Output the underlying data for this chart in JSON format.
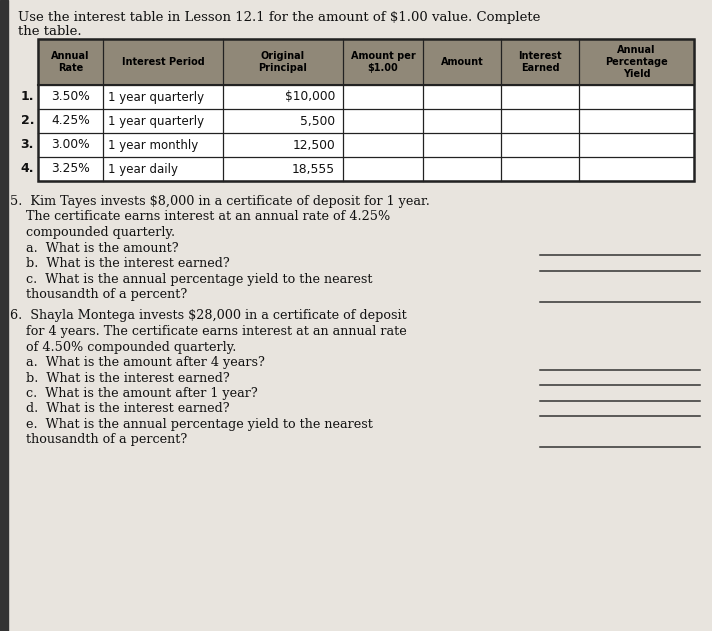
{
  "title_line1": "Use the interest table in Lesson 12.1 for the amount of $1.00 value. Complete",
  "title_line2": "the table.",
  "header_texts": [
    "Annual\nRate",
    "Interest Period",
    "Original\nPrincipal",
    "Amount per\n$1.00",
    "Amount",
    "Interest\nEarned",
    "Annual\nPercentage\nYield"
  ],
  "row_labels": [
    "1.",
    "2.",
    "3.",
    "4."
  ],
  "row_annual_rate": [
    "3.50%",
    "4.25%",
    "3.00%",
    "3.25%"
  ],
  "row_interest_period": [
    "1 year quarterly",
    "1 year quarterly",
    "1 year monthly",
    "1 year daily"
  ],
  "row_principal": [
    "$10,000",
    "5,500",
    "12,500",
    "18,555"
  ],
  "q5_lines": [
    "5.  Kim Tayes invests $8,000 in a certificate of deposit for 1 year.",
    "    The certificate earns interest at an annual rate of 4.25%",
    "    compounded quarterly.",
    "    a.  What is the amount?",
    "    b.  What is the interest earned?",
    "    c.  What is the annual percentage yield to the nearest",
    "         thousandth of a percent?"
  ],
  "q5_answer_lines": [
    3,
    4,
    6
  ],
  "q6_lines": [
    "6.  Shayla Montega invests $28,000 in a certificate of deposit",
    "    for 4 years. The certificate earns interest at an annual rate",
    "    of 4.50% compounded quarterly.",
    "    a.  What is the amount after 4 years?",
    "    b.  What is the interest earned?",
    "    c.  What is the amount after 1 year?",
    "    d.  What is the interest earned?",
    "    e.  What is the annual percentage yield to the nearest",
    "         thousandth of a percent?"
  ],
  "q6_answer_lines": [
    3,
    4,
    5,
    6,
    8
  ],
  "page_bg": "#c8c4bc",
  "white_bg": "#e8e4de",
  "header_bg": "#908878",
  "table_border": "#222222",
  "text_color": "#111111",
  "answer_line_color": "#333333",
  "left_bar_color": "#333333"
}
